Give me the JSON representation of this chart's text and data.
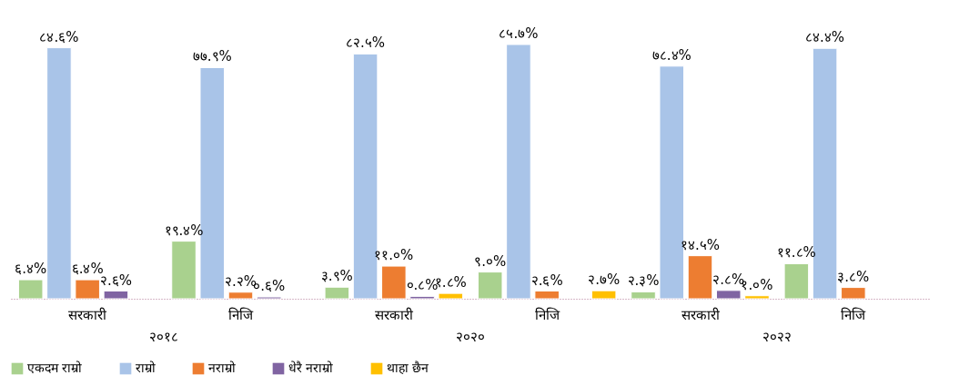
{
  "chart_data": {
    "type": "bar",
    "categories": [
      "सरकारी",
      "निजि",
      "सरकारी",
      "निजि",
      "सरकारी",
      "निजि"
    ],
    "annotations": [
      "२०१८",
      "२०२०",
      "२०२२"
    ],
    "legend": "bottom",
    "series": [
      {
        "name": "एकदम राम्रो",
        "color": "#a9d18e",
        "values": [
          6.4,
          19.4,
          3.9,
          9.0,
          2.3,
          11.8
        ],
        "value_labels": [
          "६.४%",
          "१९.४%",
          "३.९%",
          "९.०%",
          "२.३%",
          "११.८%"
        ]
      },
      {
        "name": "राम्रो",
        "color": "#a9c4e8",
        "values": [
          84.6,
          77.9,
          82.5,
          85.7,
          78.4,
          84.4
        ],
        "value_labels": [
          "८४.६%",
          "७७.९%",
          "८२.५%",
          "८५.७%",
          "७८.४%",
          "८४.४%"
        ]
      },
      {
        "name": "नराम्रो",
        "color": "#ed7d31",
        "values": [
          6.4,
          2.2,
          11.0,
          2.6,
          14.5,
          3.8
        ],
        "value_labels": [
          "६.४%",
          "२.२%",
          "११.०%",
          "२.६%",
          "१४.५%",
          "३.८%"
        ]
      },
      {
        "name": "धेरै नराम्रो",
        "color": "#8064a2",
        "values": [
          2.6,
          0.6,
          0.8,
          null,
          2.8,
          null
        ],
        "value_labels": [
          "२.६%",
          "०.६%",
          "०.८%",
          null,
          "२.८%",
          null
        ]
      },
      {
        "name": "थाहा छैन",
        "color": "#ffc000",
        "values": [
          null,
          null,
          1.8,
          2.7,
          1.0,
          null
        ],
        "value_labels": [
          null,
          null,
          "१.८%",
          "२.७%",
          "१.०%",
          null
        ]
      }
    ]
  }
}
